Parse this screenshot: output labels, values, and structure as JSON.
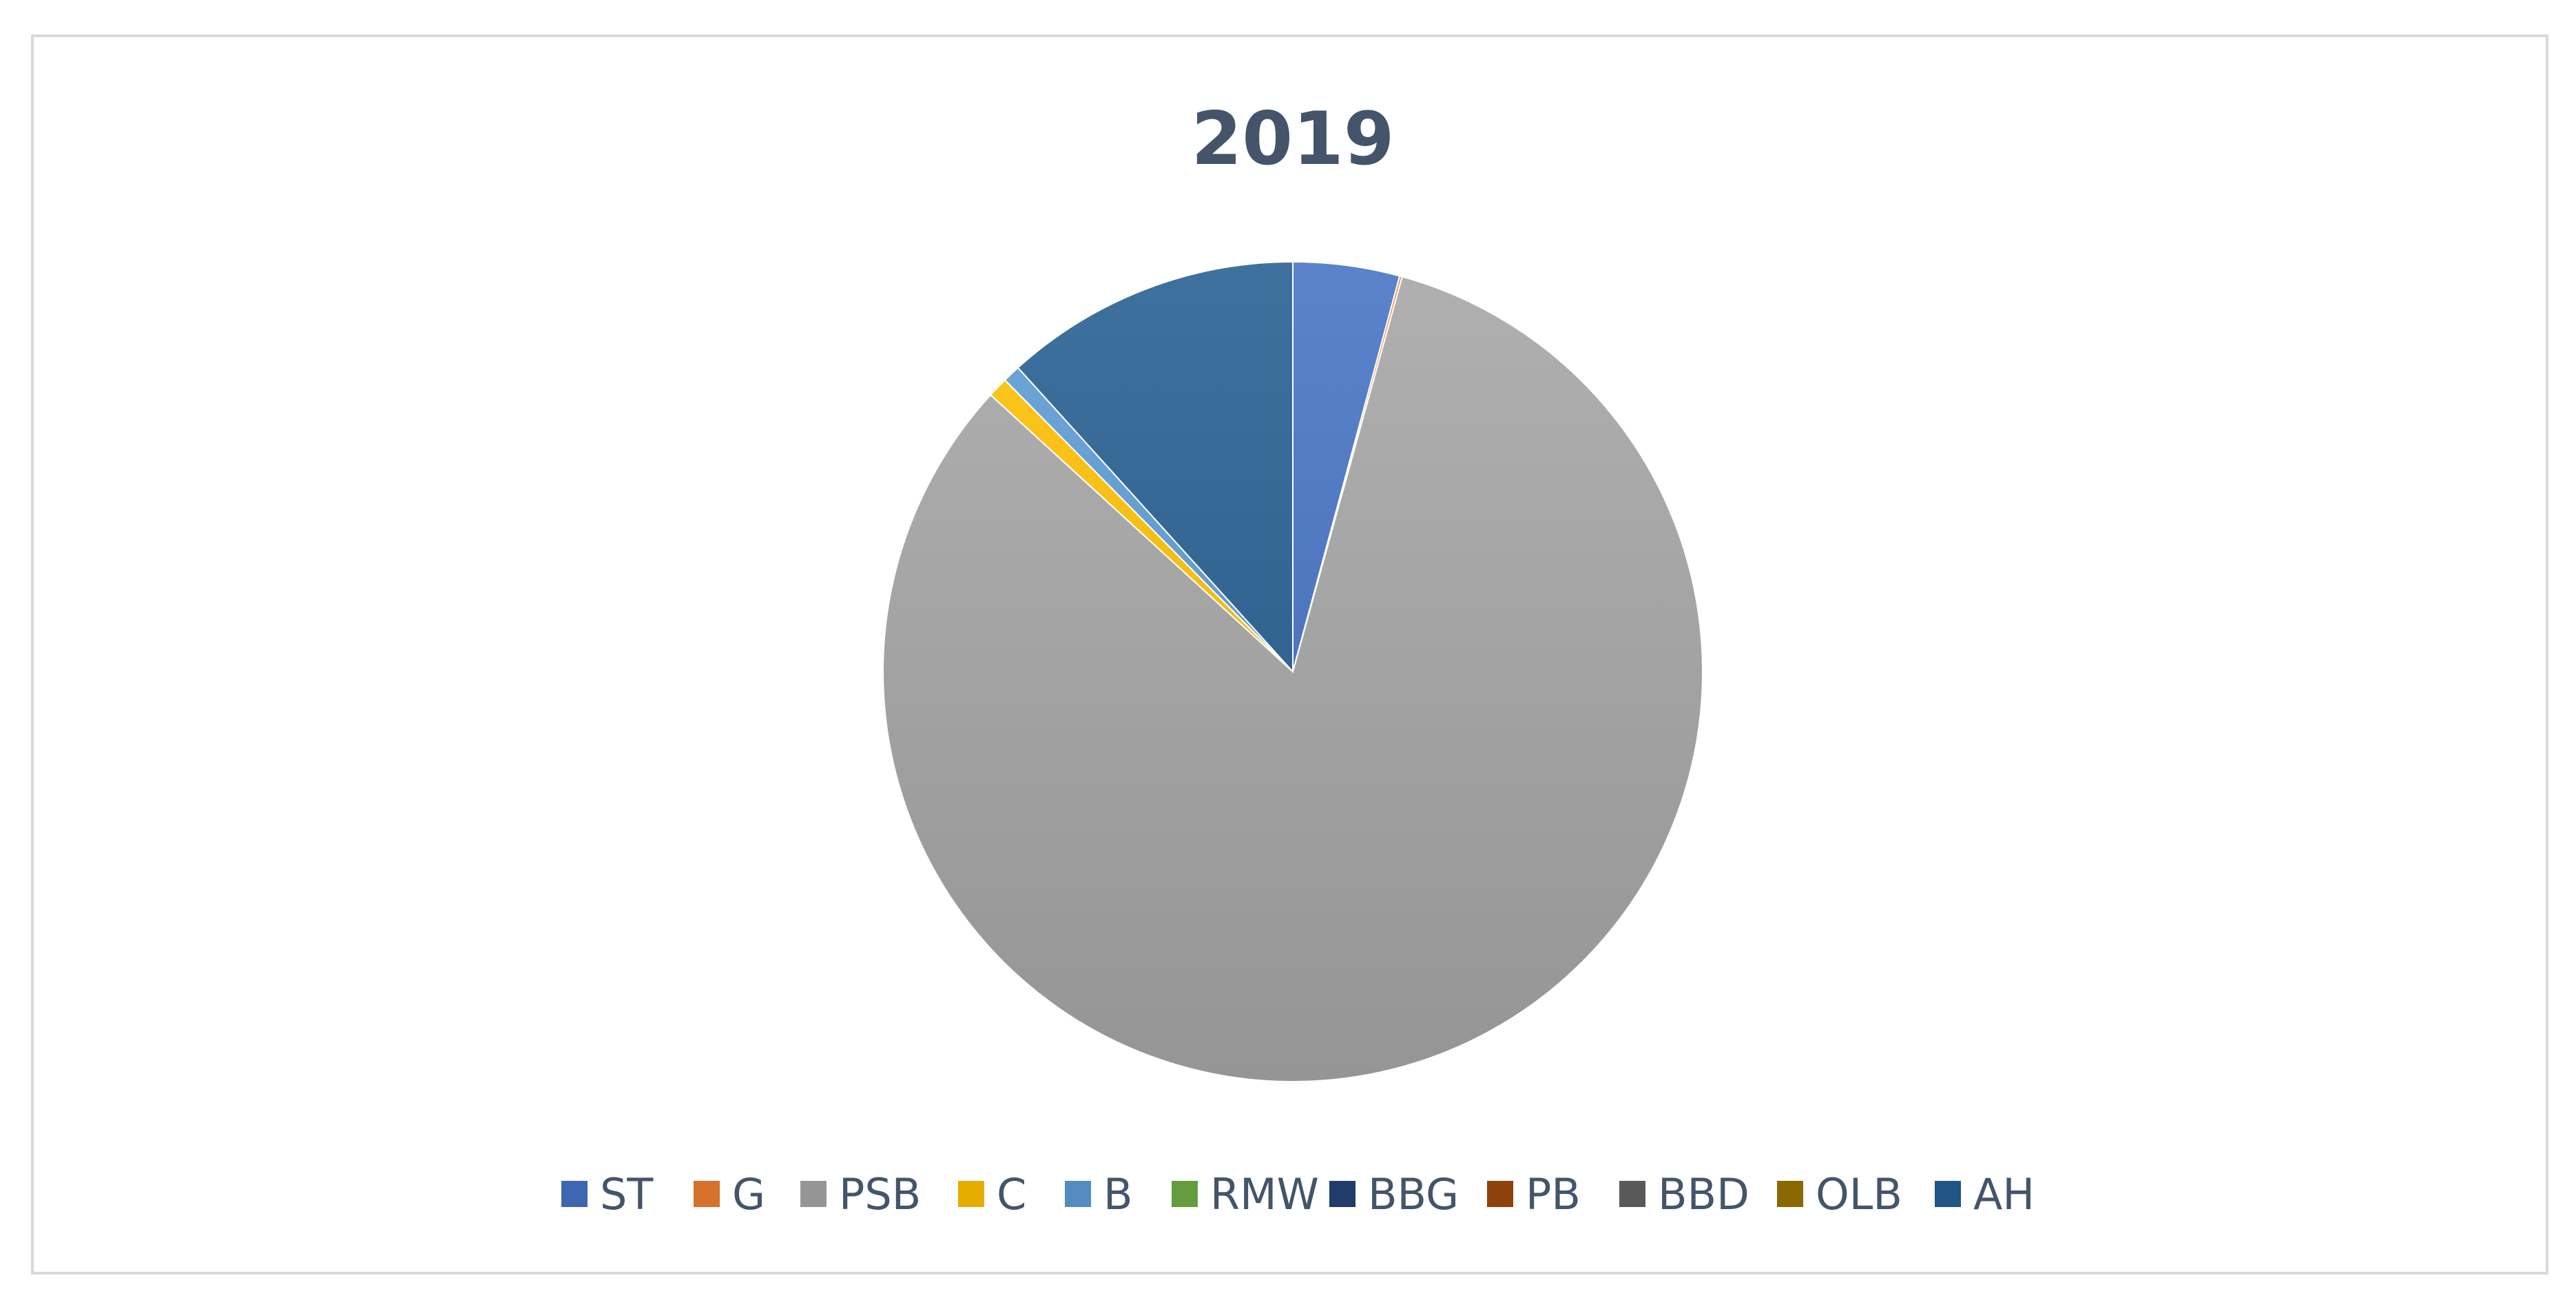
{
  "chart_data": {
    "type": "pie",
    "title": "2019",
    "legend_position": "bottom",
    "categories": [
      "ST",
      "G",
      "PSB",
      "C",
      "B",
      "RMW",
      "BBG",
      "PB",
      "BBD",
      "OLB",
      "AH"
    ],
    "values": [
      4.2,
      0.1,
      82.5,
      0.8,
      0.7,
      0.0,
      0.0,
      0.0,
      0.0,
      0.0,
      11.7
    ],
    "colors": [
      "#4472c4",
      "#ed7d31",
      "#a5a5a5",
      "#ffc000",
      "#5b9bd5",
      "#70ad47",
      "#264478",
      "#9e480e",
      "#636363",
      "#997300",
      "#255e91"
    ]
  }
}
